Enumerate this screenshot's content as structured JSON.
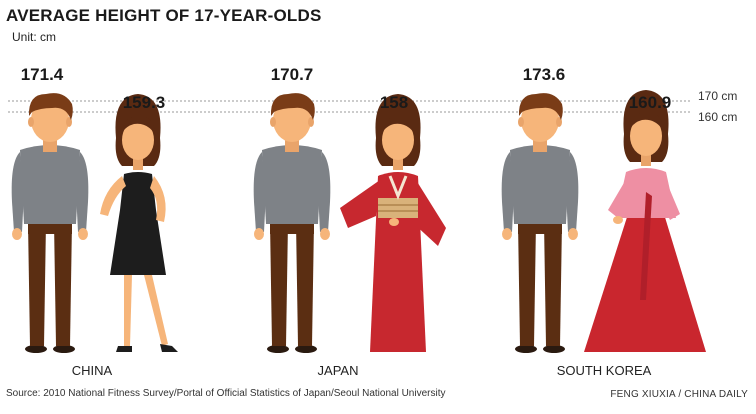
{
  "header": {
    "title": "AVERAGE HEIGHT OF 17-YEAR-OLDS",
    "unit": "Unit: cm"
  },
  "chart_data": {
    "type": "bar",
    "title": "AVERAGE HEIGHT OF 17-YEAR-OLDS",
    "ylabel": "Unit: cm",
    "categories": [
      "CHINA",
      "JAPAN",
      "SOUTH KOREA"
    ],
    "series": [
      {
        "name": "",
        "values": [
          171.4,
          170.7,
          173.6
        ]
      },
      {
        "name": "",
        "values": [
          159.3,
          158,
          160.9
        ]
      }
    ],
    "value_labels": {
      "male": [
        "171.4",
        "170.7",
        "173.6"
      ],
      "female": [
        "159.3",
        "158",
        "160.9"
      ]
    },
    "reference_lines": [
      {
        "value": 170,
        "label": "170 cm"
      },
      {
        "value": 160,
        "label": "160 cm"
      }
    ]
  },
  "colors": {
    "skin": "#F6B57A",
    "hair_male": "#7A3C17",
    "hair_female": "#5A2A12",
    "shirt": "#7E8287",
    "pants": "#5B2E12",
    "dress_black": "#1D1D1D",
    "kimono": "#C7282F",
    "hanbok_top": "#EE8FA3",
    "hanbok_skirt": "#C9262E"
  },
  "footer": {
    "source": "Source: 2010 National Fitness Survey/Portal of Official Statistics of Japan/Seoul National University",
    "credit": "FENG XIUXIA / CHINA DAILY"
  }
}
